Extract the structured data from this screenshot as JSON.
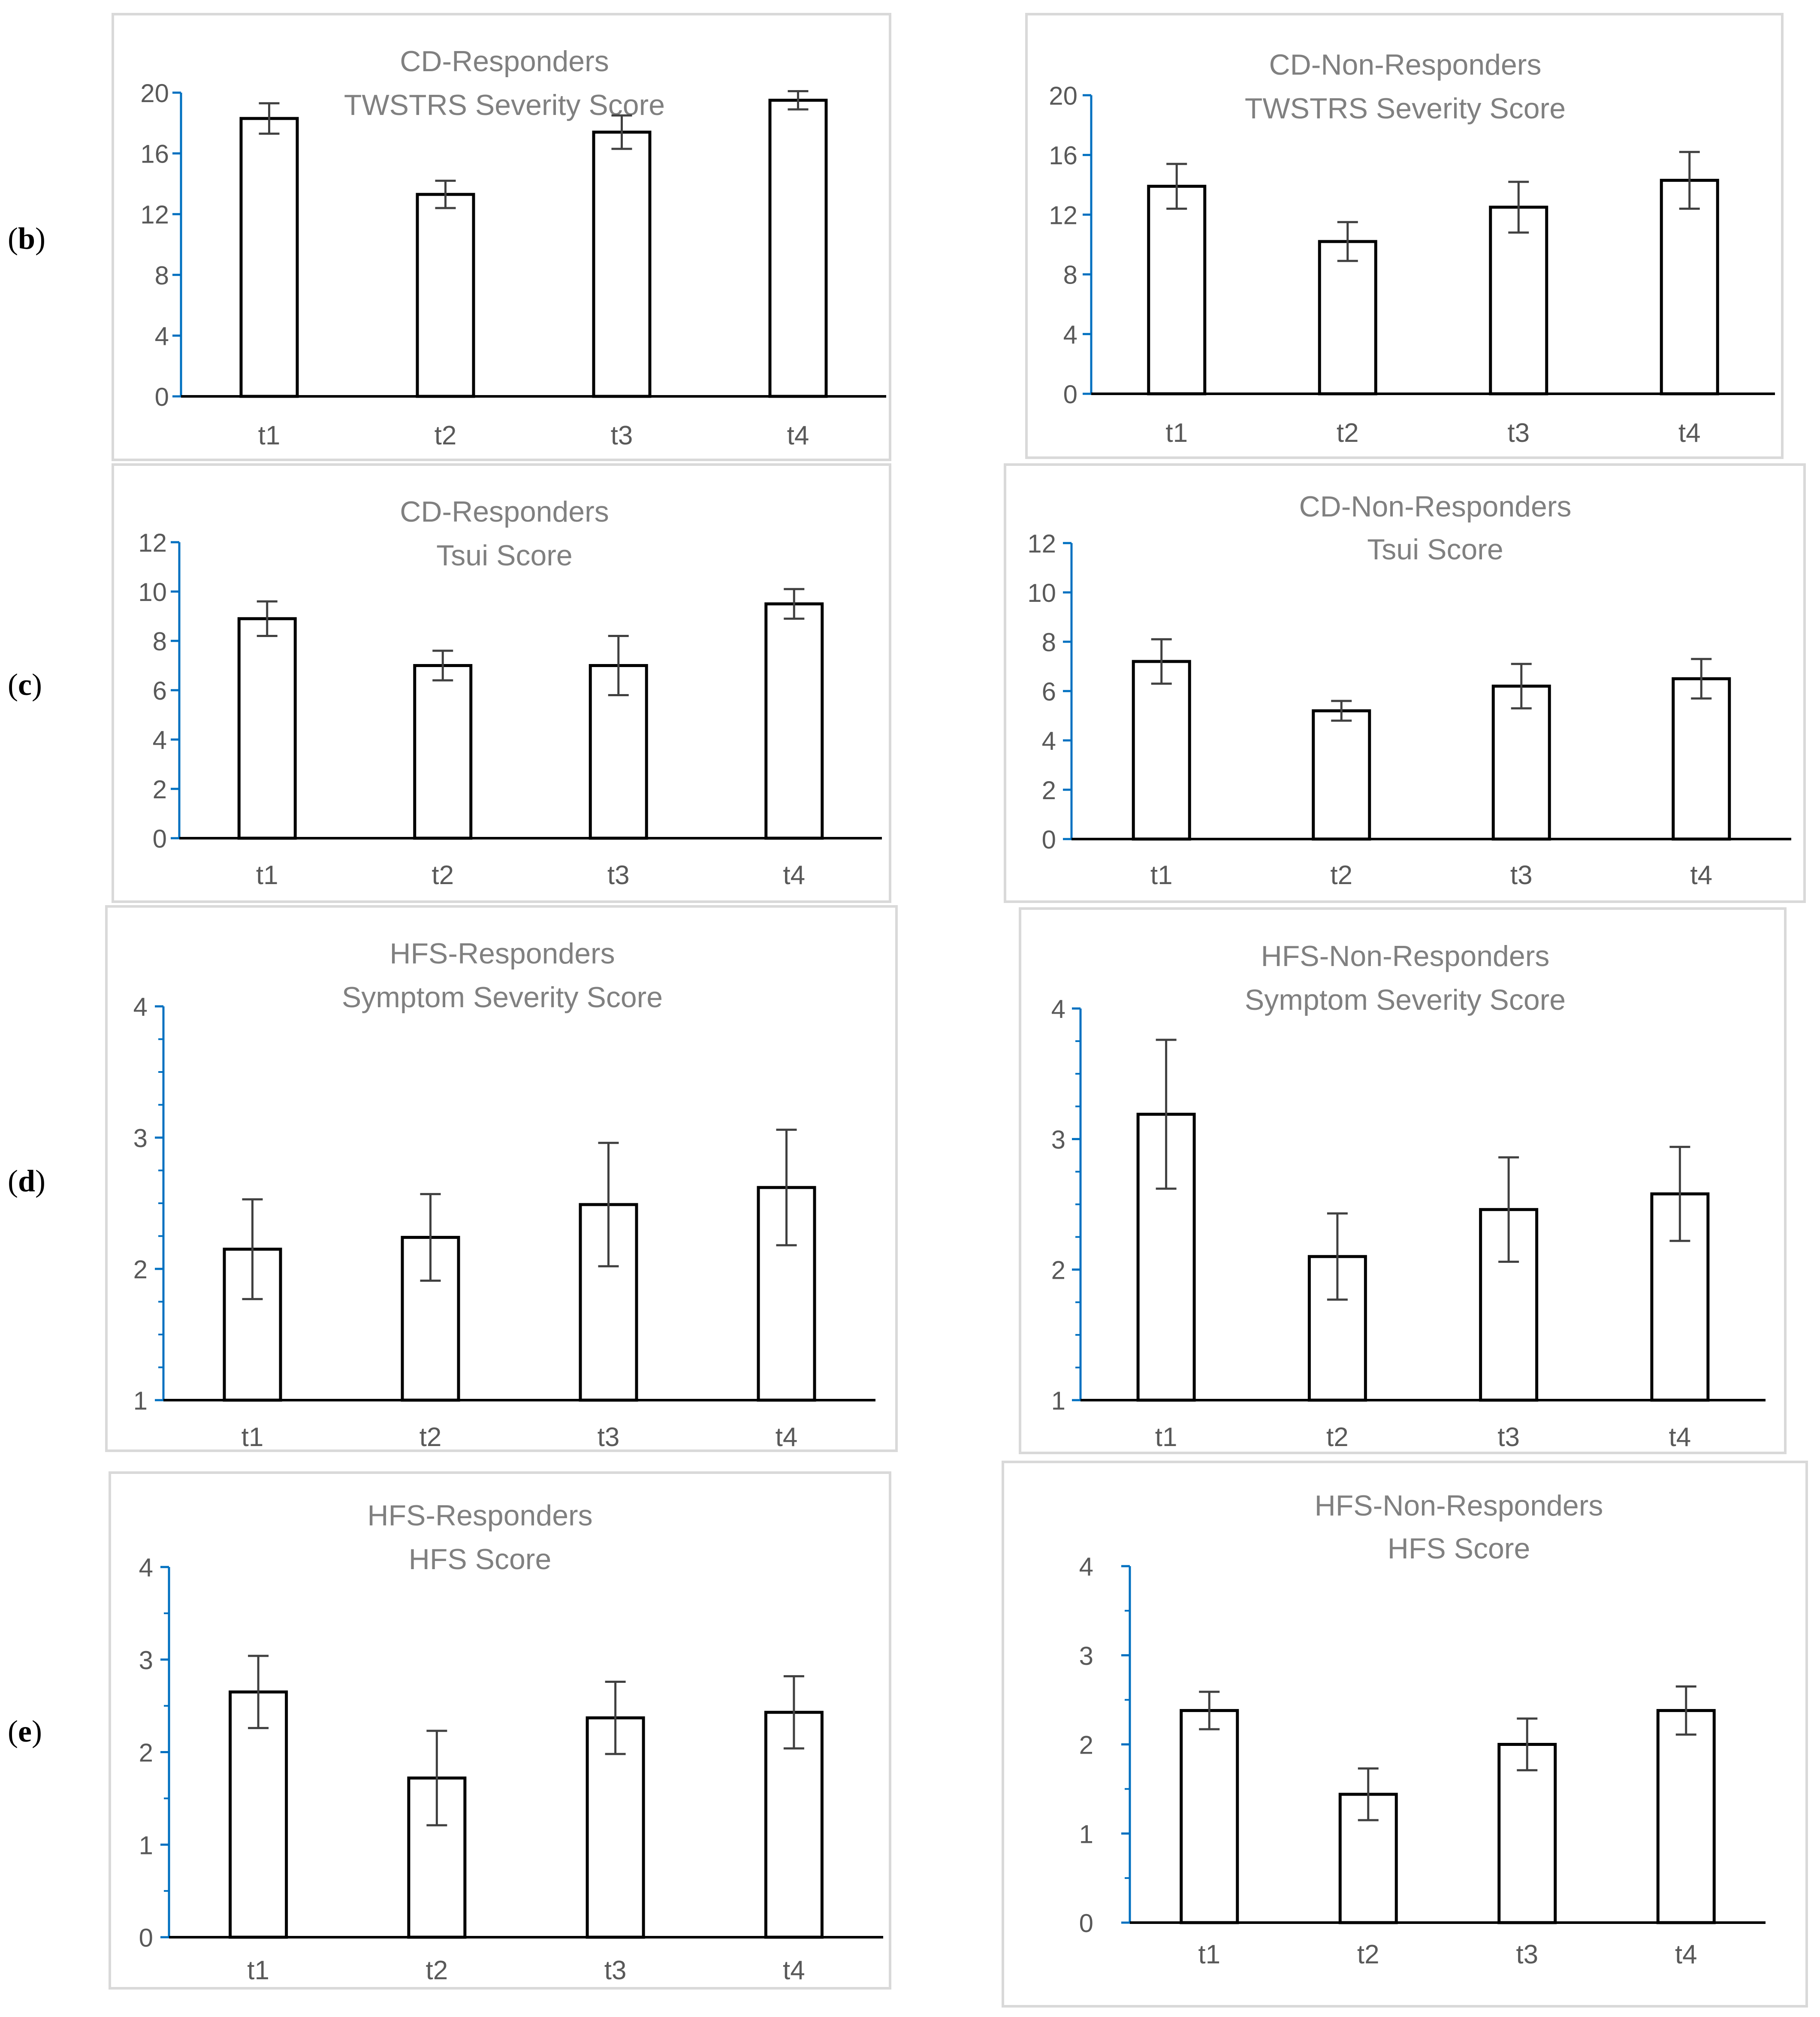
{
  "figure": {
    "row_labels": [
      {
        "open": "(",
        "letter": "b",
        "close": ")"
      },
      {
        "open": "(",
        "letter": "c",
        "close": ")"
      },
      {
        "open": "(",
        "letter": "d",
        "close": ")"
      },
      {
        "open": "(",
        "letter": "e",
        "close": ")"
      }
    ]
  },
  "colors": {
    "axis": "#0070c0",
    "title": "#808080",
    "tick": "#595959",
    "bar": "#000000",
    "border": "#d9d9d9"
  },
  "chart_data": [
    {
      "id": "b-left",
      "type": "bar",
      "title": [
        "CD-Responders",
        "TWSTRS Severity Score"
      ],
      "categories": [
        "t1",
        "t2",
        "t3",
        "t4"
      ],
      "values": [
        18.3,
        13.3,
        17.4,
        19.5
      ],
      "errors": [
        1.0,
        0.9,
        1.1,
        0.6
      ],
      "ylim": [
        0,
        20
      ],
      "yticks": [
        0,
        4,
        8,
        12,
        16,
        20
      ],
      "minor_ticks": []
    },
    {
      "id": "b-right",
      "type": "bar",
      "title": [
        "CD-Non-Responders",
        "TWSTRS Severity Score"
      ],
      "categories": [
        "t1",
        "t2",
        "t3",
        "t4"
      ],
      "values": [
        13.9,
        10.2,
        12.5,
        14.3
      ],
      "errors": [
        1.5,
        1.3,
        1.7,
        1.9
      ],
      "ylim": [
        0,
        20
      ],
      "yticks": [
        0,
        4,
        8,
        12,
        16,
        20
      ],
      "minor_ticks": []
    },
    {
      "id": "c-left",
      "type": "bar",
      "title": [
        "CD-Responders",
        "Tsui Score"
      ],
      "categories": [
        "t1",
        "t2",
        "t3",
        "t4"
      ],
      "values": [
        8.9,
        7.0,
        7.0,
        9.5
      ],
      "errors": [
        0.7,
        0.6,
        1.2,
        0.6
      ],
      "ylim": [
        0,
        12
      ],
      "yticks": [
        0,
        2,
        4,
        6,
        8,
        10,
        12
      ],
      "minor_ticks": []
    },
    {
      "id": "c-right",
      "type": "bar",
      "title": [
        "CD-Non-Responders",
        "Tsui Score"
      ],
      "categories": [
        "t1",
        "t2",
        "t3",
        "t4"
      ],
      "values": [
        7.2,
        5.2,
        6.2,
        6.5
      ],
      "errors": [
        0.9,
        0.4,
        0.9,
        0.8
      ],
      "ylim": [
        0,
        12
      ],
      "yticks": [
        0,
        2,
        4,
        6,
        8,
        10,
        12
      ],
      "minor_ticks": []
    },
    {
      "id": "d-left",
      "type": "bar",
      "title": [
        "HFS-Responders",
        "Symptom Severity Score"
      ],
      "categories": [
        "t1",
        "t2",
        "t3",
        "t4"
      ],
      "values": [
        2.15,
        2.24,
        2.49,
        2.62
      ],
      "errors": [
        0.38,
        0.33,
        0.47,
        0.44
      ],
      "ylim": [
        1,
        4
      ],
      "yticks": [
        1,
        2,
        3,
        4
      ],
      "minor_ticks": [
        1.25,
        1.5,
        1.75,
        2.25,
        2.5,
        2.75,
        3.25,
        3.5,
        3.75
      ]
    },
    {
      "id": "d-right",
      "type": "bar",
      "title": [
        "HFS-Non-Responders",
        "Symptom Severity Score"
      ],
      "categories": [
        "t1",
        "t2",
        "t3",
        "t4"
      ],
      "values": [
        3.19,
        2.1,
        2.46,
        2.58
      ],
      "errors": [
        0.57,
        0.33,
        0.4,
        0.36
      ],
      "ylim": [
        1,
        4
      ],
      "yticks": [
        1,
        2,
        3,
        4
      ],
      "minor_ticks": [
        1.25,
        1.5,
        1.75,
        2.25,
        2.5,
        2.75,
        3.25,
        3.5,
        3.75
      ]
    },
    {
      "id": "e-left",
      "type": "bar",
      "title": [
        "HFS-Responders",
        "HFS Score"
      ],
      "categories": [
        "t1",
        "t2",
        "t3",
        "t4"
      ],
      "values": [
        2.65,
        1.72,
        2.37,
        2.43
      ],
      "errors": [
        0.39,
        0.51,
        0.39,
        0.39
      ],
      "ylim": [
        0,
        4
      ],
      "yticks": [
        0,
        1,
        2,
        3,
        4
      ],
      "minor_ticks": [
        0.5,
        1.5,
        2.5,
        3.5
      ]
    },
    {
      "id": "e-right",
      "type": "bar",
      "title": [
        "HFS-Non-Responders",
        "HFS Score"
      ],
      "categories": [
        "t1",
        "t2",
        "t3",
        "t4"
      ],
      "values": [
        2.38,
        1.44,
        2.0,
        2.38
      ],
      "errors": [
        0.21,
        0.29,
        0.29,
        0.27
      ],
      "ylim": [
        0,
        4
      ],
      "yticks": [
        0,
        1,
        2,
        3,
        4
      ],
      "minor_ticks": [
        0.5,
        1.5,
        2.5,
        3.5
      ]
    }
  ]
}
